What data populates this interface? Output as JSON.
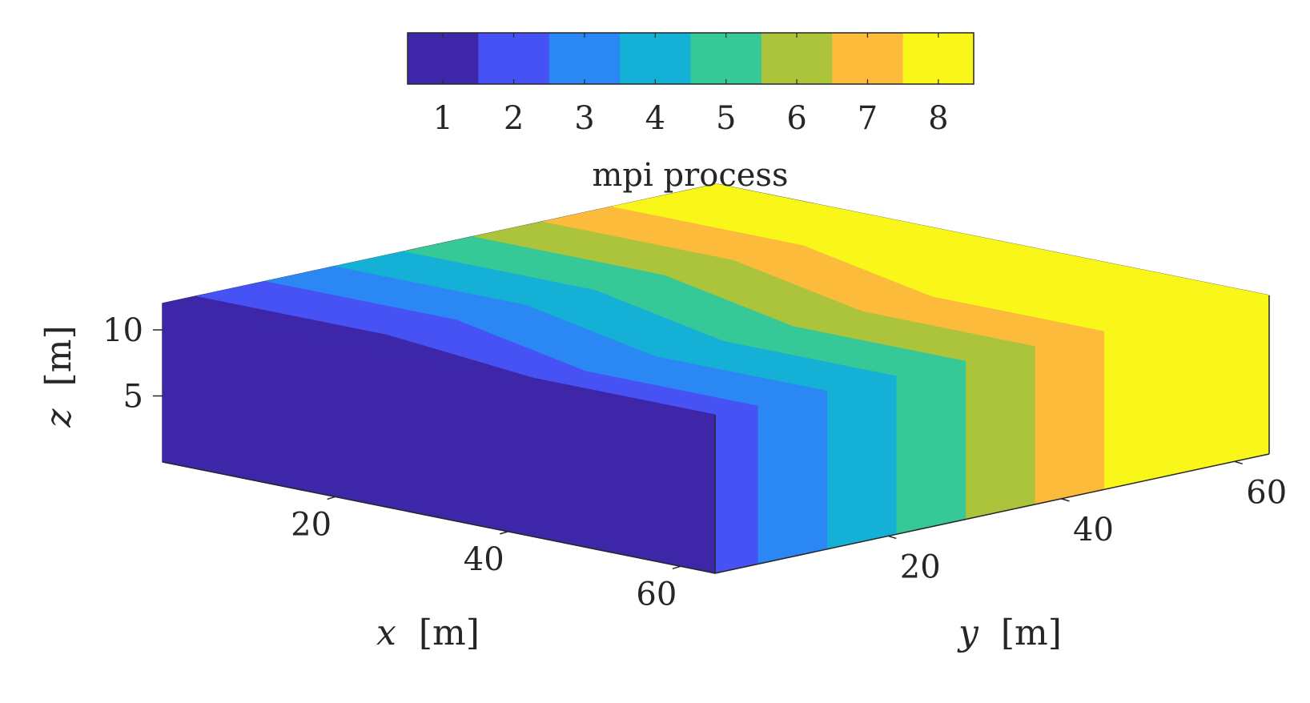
{
  "chart_data": {
    "type": "3d-partition",
    "colorbar": {
      "label": "mpi process",
      "ticks": [
        "1",
        "2",
        "3",
        "4",
        "5",
        "6",
        "7",
        "8"
      ],
      "colors": [
        "#3d26a8",
        "#4652f3",
        "#2b87f4",
        "#14b0d6",
        "#37c898",
        "#abc43b",
        "#fdbb3c",
        "#f8f719"
      ],
      "placement": "top"
    },
    "xaxis": {
      "var": "x",
      "unit": "[m]",
      "ticks": [
        "20",
        "40",
        "60"
      ],
      "lim": [
        0,
        64
      ]
    },
    "yaxis": {
      "var": "y",
      "unit": "[m]",
      "ticks": [
        "20",
        "40",
        "60"
      ],
      "lim": [
        0,
        64
      ]
    },
    "zaxis": {
      "var": "z",
      "unit": "[m]",
      "ticks": [
        "5",
        "10"
      ],
      "lim": [
        0,
        12
      ]
    },
    "grid": true,
    "partitions": [
      {
        "process": 1,
        "y_range": [
          0,
          4
        ]
      },
      {
        "process": 2,
        "y_range": [
          4,
          12
        ]
      },
      {
        "process": 3,
        "y_range": [
          12,
          20
        ]
      },
      {
        "process": 4,
        "y_range": [
          20,
          28
        ]
      },
      {
        "process": 5,
        "y_range": [
          28,
          36
        ]
      },
      {
        "process": 6,
        "y_range": [
          36,
          44
        ]
      },
      {
        "process": 7,
        "y_range": [
          44,
          52
        ]
      },
      {
        "process": 8,
        "y_range": [
          52,
          64
        ]
      }
    ]
  }
}
